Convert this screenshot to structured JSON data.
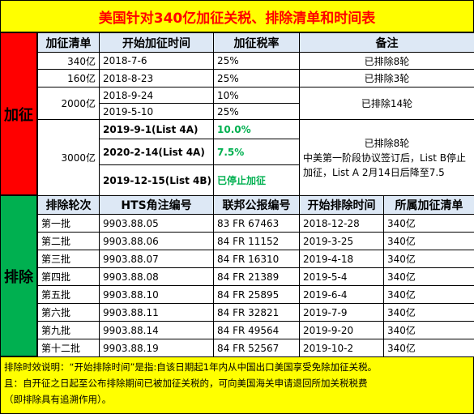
{
  "title": "美国针对340亿加征关税、排除清单和时间表",
  "side": {
    "tariff": "加征",
    "exclusion": "排除"
  },
  "tariff_header": {
    "list": "加征清单",
    "start": "开始加征时间",
    "rate": "加征税率",
    "remark": "备注"
  },
  "tariff_rows": [
    {
      "list": "340亿",
      "start": "2018-7-6",
      "rate": "25%",
      "remark": "已排除8轮"
    },
    {
      "list": "160亿",
      "start": "2018-8-23",
      "rate": "25%",
      "remark": "已排除3轮"
    },
    {
      "list": "2000亿",
      "start_a": "2018-9-24",
      "rate_a": "10%",
      "start_b": "2019-5-10",
      "rate_b": "25%",
      "remark": "已排除14轮"
    },
    {
      "list": "3000亿",
      "start_a": "2019-9-1(List 4A)",
      "rate_a": "10.0%",
      "start_b": "2020-2-14(List 4A)",
      "rate_b": "7.5%",
      "start_c": "2019-12-15(List 4B)",
      "rate_c": "已停止加征",
      "remark_1": "已排除8轮",
      "remark_2": "中美第一阶段协议签订后，List B停止加征，List A 2月14日后降至7.5"
    }
  ],
  "excl_header": {
    "round": "排除轮次",
    "hts": "HTS角注编号",
    "fr": "联邦公报编号",
    "start": "开始排除时间",
    "list": "所属加征清单"
  },
  "excl_rows": [
    {
      "round": "第一批",
      "hts": "9903.88.05",
      "fr": "83 FR 67463",
      "start": "2018-12-28",
      "list": "340亿"
    },
    {
      "round": "第二批",
      "hts": "9903.88.06",
      "fr": "84 FR 11152",
      "start": "2019-3-25",
      "list": "340亿"
    },
    {
      "round": "第三批",
      "hts": "9903.88.07",
      "fr": "84 FR 16310",
      "start": "2019-4-18",
      "list": "340亿"
    },
    {
      "round": "第四批",
      "hts": "9903.88.08",
      "fr": "84 FR 21389",
      "start": "2019-5-4",
      "list": "340亿"
    },
    {
      "round": "第五批",
      "hts": "9903.88.10",
      "fr": "84 FR 25895",
      "start": "2019-6-4",
      "list": "340亿"
    },
    {
      "round": "第六批",
      "hts": "9903.88.11",
      "fr": "84 FR 32821",
      "start": "2019-7-9",
      "list": "340亿"
    },
    {
      "round": "第九批",
      "hts": "9903.88.14",
      "fr": "84 FR 49564",
      "start": "2019-9-20",
      "list": "340亿"
    },
    {
      "round": "第十二批",
      "hts": "9903.88.19",
      "fr": "84 FR 52567",
      "start": "2019-10-2",
      "list": "340亿"
    }
  ],
  "note": {
    "line1": "排除时效说明：“开始排除时间”是指:自该日期起1年内从中国出口美国享受免除加征关税。",
    "line2": "且：自开征之日起至公布排除期间已被加征关税的，可向美国海关申请退回所加关税税费",
    "line3": "（即排除具有追溯作用）。"
  }
}
